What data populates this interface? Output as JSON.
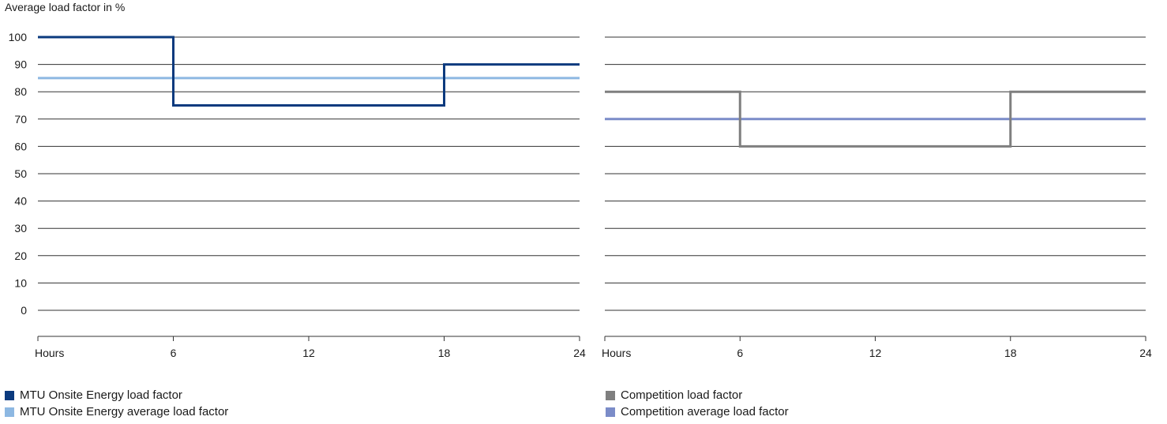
{
  "chart_data": [
    {
      "type": "line",
      "title": "",
      "ylabel": "Average load factor in %",
      "xlabel": "Hours",
      "xlim": [
        0,
        24
      ],
      "ylim": [
        0,
        100
      ],
      "xticks": [
        6,
        12,
        18,
        24
      ],
      "yticks": [
        100,
        90,
        80,
        70,
        60,
        50,
        40,
        30,
        20,
        10,
        0
      ],
      "grid": true,
      "step": true,
      "series": [
        {
          "name": "MTU Onsite Energy load factor",
          "color": "#0b3a7e",
          "x": [
            0,
            6,
            6,
            18,
            18,
            24
          ],
          "y": [
            100,
            100,
            75,
            75,
            90,
            90
          ]
        },
        {
          "name": "MTU Onsite Energy average load factor",
          "color": "#8db8e2",
          "x": [
            0,
            24
          ],
          "y": [
            85,
            85
          ]
        }
      ]
    },
    {
      "type": "line",
      "title": "",
      "xlabel": "Hours",
      "xlim": [
        0,
        24
      ],
      "ylim": [
        0,
        100
      ],
      "xticks": [
        6,
        12,
        18,
        24
      ],
      "grid": true,
      "step": true,
      "series": [
        {
          "name": "Competition load factor",
          "color": "#7f7f7f",
          "x": [
            0,
            6,
            6,
            18,
            18,
            24
          ],
          "y": [
            80,
            80,
            60,
            60,
            80,
            80
          ]
        },
        {
          "name": "Competition average load factor",
          "color": "#7b8cc8",
          "x": [
            0,
            24
          ],
          "y": [
            70,
            70
          ]
        }
      ]
    }
  ]
}
